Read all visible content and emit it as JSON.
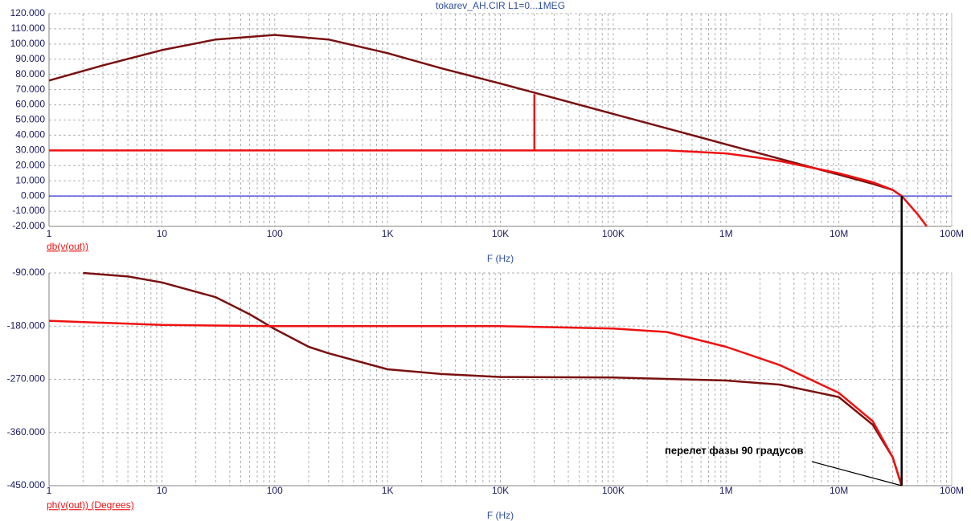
{
  "chart_data": [
    {
      "type": "line",
      "title": "tokarev_AH.CIR L1=0...1MEG",
      "xlabel": "F (Hz)",
      "ylabel": "db(v(out))",
      "xscale": "log",
      "grid": true,
      "xlim": [
        1,
        100000000
      ],
      "ylim": [
        -20,
        120
      ],
      "xticks": [
        1,
        10,
        100,
        {
          "value": 1000,
          "label": "1K"
        },
        {
          "value": 10000,
          "label": "10K"
        },
        {
          "value": 100000,
          "label": "100K"
        },
        {
          "value": 1000000,
          "label": "1M"
        },
        {
          "value": 10000000,
          "label": "10M"
        },
        {
          "value": 100000000,
          "label": "100M"
        }
      ],
      "yticks": [
        {
          "value": 120,
          "label": "120.000"
        },
        {
          "value": 110,
          "label": "110.000"
        },
        {
          "value": 100,
          "label": "100.000"
        },
        {
          "value": 90,
          "label": "90.000"
        },
        {
          "value": 80,
          "label": "80.000"
        },
        {
          "value": 70,
          "label": "70.000"
        },
        {
          "value": 60,
          "label": "60.000"
        },
        {
          "value": 50,
          "label": "50.000"
        },
        {
          "value": 40,
          "label": "40.000"
        },
        {
          "value": 30,
          "label": "30.000"
        },
        {
          "value": 20,
          "label": "20.000"
        },
        {
          "value": 10,
          "label": "10.000"
        },
        {
          "value": 0,
          "label": "0.000"
        },
        {
          "value": -10,
          "label": "-10.000"
        },
        {
          "value": -20,
          "label": "-20.000"
        }
      ],
      "hlines": [
        0
      ],
      "hline_color": "#0000cc",
      "series": [
        {
          "color": "#7a1010",
          "x": [
            1,
            3,
            10,
            30,
            100,
            300,
            1000,
            3000,
            10000,
            20000,
            100000,
            300000,
            1000000,
            3000000,
            10000000,
            20000000,
            30000000,
            36000000
          ],
          "values": [
            76,
            86,
            96,
            103,
            106,
            103,
            94,
            84,
            74,
            68,
            54,
            44.5,
            34,
            24.5,
            14,
            8,
            4,
            0
          ]
        },
        {
          "color": "#ee1111",
          "x": [
            1,
            100000,
            300000,
            1000000,
            2000000,
            3000000,
            10000000,
            20000000,
            30000000,
            36000000,
            50000000,
            60000000
          ],
          "values": [
            30,
            30,
            30,
            28,
            25,
            23,
            15,
            9,
            4,
            0,
            -12,
            -20
          ]
        },
        {
          "color": "#ee1111",
          "x": [
            20000,
            20000
          ],
          "values": [
            30,
            67
          ]
        }
      ]
    },
    {
      "type": "line",
      "xlabel": "F (Hz)",
      "ylabel": "ph(v(out)) (Degrees)",
      "xscale": "log",
      "grid": true,
      "xlim": [
        1,
        100000000
      ],
      "ylim": [
        -450,
        -90
      ],
      "xticks": [
        1,
        10,
        100,
        {
          "value": 1000,
          "label": "1K"
        },
        {
          "value": 10000,
          "label": "10K"
        },
        {
          "value": 100000,
          "label": "100K"
        },
        {
          "value": 1000000,
          "label": "1M"
        },
        {
          "value": 10000000,
          "label": "10M"
        },
        {
          "value": 100000000,
          "label": "100M"
        }
      ],
      "yticks": [
        {
          "value": -90,
          "label": "-90.000"
        },
        {
          "value": -180,
          "label": "-180.000"
        },
        {
          "value": -270,
          "label": "-270.000"
        },
        {
          "value": -360,
          "label": "-360.000"
        },
        {
          "value": -450,
          "label": "-450.000"
        }
      ],
      "series": [
        {
          "color": "#7a1010",
          "x": [
            2,
            5,
            10,
            30,
            60,
            100,
            200,
            300,
            1000,
            3000,
            10000,
            100000,
            1000000,
            3000000,
            10000000,
            20000000,
            30000000,
            36000000
          ],
          "values": [
            -90,
            -96,
            -106,
            -131,
            -160,
            -185,
            -215,
            -226,
            -253,
            -261,
            -266,
            -267,
            -272,
            -279,
            -300,
            -347,
            -402,
            -450
          ]
        },
        {
          "color": "#ee1111",
          "x": [
            1,
            10,
            100,
            10000,
            100000,
            300000,
            1000000,
            3000000,
            10000000,
            20000000,
            30000000,
            36000000
          ],
          "values": [
            -171,
            -178,
            -180,
            -180,
            -184,
            -190,
            -215,
            -246,
            -293,
            -341,
            -402,
            -450
          ]
        }
      ],
      "annotation": {
        "text": "перелет фазы 90 градусов",
        "x": 36000000,
        "y": -450
      }
    }
  ]
}
